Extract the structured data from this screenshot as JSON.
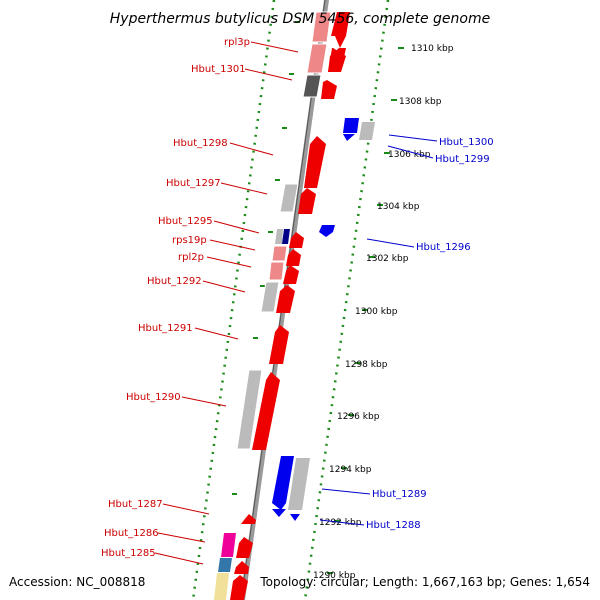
{
  "title": "Hyperthermus butylicus DSM 5456, complete genome",
  "accession": "Accession: NC_008818",
  "summary": "Topology: circular; Length: 1,667,163 bp; Genes: 1,654",
  "scale_labels": [
    "1310 kbp",
    "1308 kbp",
    "1306 kbp",
    "1304 kbp",
    "1302 kbp",
    "1300 kbp",
    "1298 kbp",
    "1296 kbp",
    "1294 kbp",
    "1292 kbp",
    "1290 kbp"
  ],
  "colors": {
    "forward_label": "#cc0000",
    "reverse_label": "#0000cc",
    "red": "#ee0000",
    "pink": "#ee8888",
    "blue": "#0000ee",
    "gray": "#bbbbbb",
    "dark_gray": "#555555",
    "navy": "#000088",
    "magenta": "#ee0099",
    "steel_blue": "#3377aa",
    "pale_yellow": "#f0e09a",
    "backbone": "#999999",
    "dotted_guide": "#228822"
  },
  "forward_labels": [
    "rpl3p",
    "Hbut_1301",
    "Hbut_1298",
    "Hbut_1297",
    "Hbut_1295",
    "rps19p",
    "rpl2p",
    "Hbut_1292",
    "Hbut_1291",
    "Hbut_1290",
    "Hbut_1287",
    "Hbut_1286",
    "Hbut_1285"
  ],
  "reverse_labels": [
    "Hbut_1300",
    "Hbut_1299",
    "Hbut_1296",
    "Hbut_1289",
    "Hbut_1288"
  ]
}
